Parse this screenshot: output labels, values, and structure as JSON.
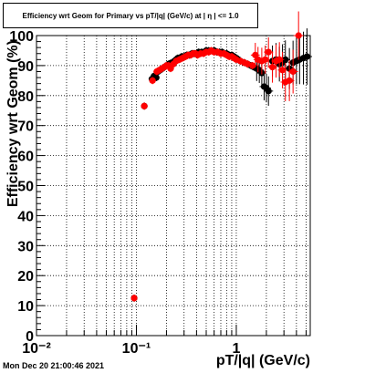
{
  "chart_data": {
    "type": "scatter",
    "title": "Efficiency wrt Geom for Primary vs pT/|q| (GeV/c) at | η | <= 1.0",
    "xlabel": "pT/|q| (GeV/c)",
    "ylabel": "Efficiency wrt Geom (%)",
    "x_scale": "log",
    "xlim": [
      0.01,
      5.5
    ],
    "ylim": [
      0,
      100
    ],
    "x_tick_labels": [
      "10⁻²",
      "10⁻¹",
      "1"
    ],
    "y_ticks": [
      0,
      10,
      20,
      30,
      40,
      50,
      60,
      70,
      80,
      90,
      100
    ],
    "grid": true,
    "series": [
      {
        "color": "#000000",
        "points": [
          [
            0.095,
            12.5
          ],
          [
            0.12,
            76.5
          ],
          [
            0.143,
            85.5
          ],
          [
            0.15,
            86.5
          ],
          [
            0.158,
            86
          ],
          [
            0.165,
            88
          ],
          [
            0.173,
            88.5
          ],
          [
            0.182,
            89
          ],
          [
            0.19,
            89.5
          ],
          [
            0.2,
            90
          ],
          [
            0.21,
            90.5
          ],
          [
            0.22,
            90.8
          ],
          [
            0.23,
            91
          ],
          [
            0.24,
            91.5
          ],
          [
            0.25,
            92
          ],
          [
            0.26,
            92.5
          ],
          [
            0.27,
            92.5
          ],
          [
            0.285,
            93
          ],
          [
            0.3,
            93
          ],
          [
            0.32,
            93.5
          ],
          [
            0.34,
            93.5
          ],
          [
            0.36,
            94
          ],
          [
            0.38,
            94
          ],
          [
            0.4,
            94
          ],
          [
            0.42,
            94.5
          ],
          [
            0.45,
            94.5
          ],
          [
            0.48,
            94.5
          ],
          [
            0.5,
            95
          ],
          [
            0.53,
            95
          ],
          [
            0.56,
            95
          ],
          [
            0.6,
            95
          ],
          [
            0.64,
            94.5
          ],
          [
            0.68,
            94.5
          ],
          [
            0.72,
            94.5
          ],
          [
            0.76,
            94
          ],
          [
            0.8,
            94
          ],
          [
            0.85,
            93.5
          ],
          [
            0.9,
            93.5
          ],
          [
            0.95,
            93
          ],
          [
            1.0,
            92.5
          ],
          [
            1.05,
            92
          ],
          [
            1.1,
            91.5
          ],
          [
            1.2,
            91
          ],
          [
            1.3,
            90.5
          ],
          [
            1.4,
            90
          ],
          [
            1.5,
            89.5
          ],
          [
            1.6,
            89
          ],
          [
            1.7,
            88.5
          ],
          [
            1.8,
            87.5
          ],
          [
            1.9,
            83
          ],
          [
            2.0,
            82.5
          ],
          [
            2.1,
            81.5
          ],
          [
            2.3,
            91.5
          ],
          [
            2.5,
            92
          ],
          [
            2.7,
            90.5
          ],
          [
            2.9,
            91
          ],
          [
            3.1,
            92
          ],
          [
            3.4,
            89
          ],
          [
            3.7,
            91
          ],
          [
            4.0,
            91.5
          ],
          [
            4.3,
            92
          ],
          [
            4.7,
            92.5
          ],
          [
            5.1,
            93
          ]
        ]
      },
      {
        "color": "#ff0000",
        "points": [
          [
            0.095,
            12.5
          ],
          [
            0.12,
            76.5
          ],
          [
            0.145,
            85
          ],
          [
            0.16,
            88
          ],
          [
            0.17,
            88.5
          ],
          [
            0.18,
            89
          ],
          [
            0.19,
            89.5
          ],
          [
            0.2,
            90
          ],
          [
            0.21,
            90
          ],
          [
            0.22,
            89
          ],
          [
            0.235,
            90.5
          ],
          [
            0.25,
            91.5
          ],
          [
            0.27,
            92
          ],
          [
            0.29,
            92.5
          ],
          [
            0.31,
            93
          ],
          [
            0.33,
            93.5
          ],
          [
            0.35,
            93.5
          ],
          [
            0.37,
            94
          ],
          [
            0.39,
            94
          ],
          [
            0.41,
            93.5
          ],
          [
            0.44,
            94
          ],
          [
            0.47,
            94
          ],
          [
            0.5,
            94.5
          ],
          [
            0.53,
            94.5
          ],
          [
            0.56,
            95
          ],
          [
            0.6,
            94.5
          ],
          [
            0.65,
            94.5
          ],
          [
            0.7,
            94
          ],
          [
            0.75,
            94
          ],
          [
            0.8,
            93.5
          ],
          [
            0.85,
            93
          ],
          [
            0.9,
            93
          ],
          [
            0.95,
            92.5
          ],
          [
            1.0,
            92
          ],
          [
            1.1,
            91.5
          ],
          [
            1.2,
            91
          ],
          [
            1.3,
            90.5
          ],
          [
            1.45,
            90
          ],
          [
            1.55,
            93.5
          ],
          [
            1.65,
            92
          ],
          [
            1.8,
            91.5
          ],
          [
            1.95,
            92
          ],
          [
            2.1,
            94.5
          ],
          [
            2.3,
            89.5
          ],
          [
            2.5,
            91.5
          ],
          [
            2.7,
            92
          ],
          [
            2.9,
            88.5
          ],
          [
            3.1,
            84.5
          ],
          [
            3.4,
            85
          ],
          [
            3.7,
            88
          ],
          [
            4.2,
            100
          ]
        ]
      }
    ]
  },
  "footer_text": "Mon Dec 20 21:00:46 2021"
}
